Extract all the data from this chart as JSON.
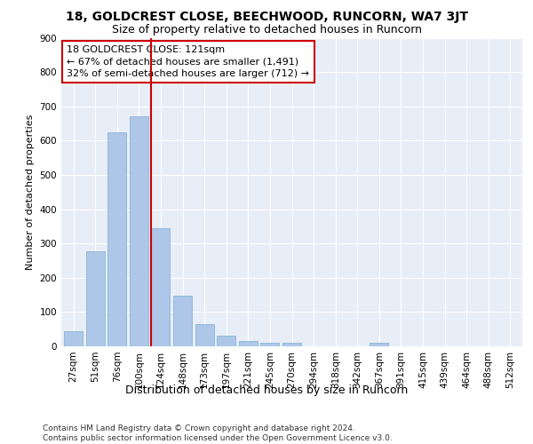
{
  "title": "18, GOLDCREST CLOSE, BEECHWOOD, RUNCORN, WA7 3JT",
  "subtitle": "Size of property relative to detached houses in Runcorn",
  "xlabel": "Distribution of detached houses by size in Runcorn",
  "ylabel": "Number of detached properties",
  "categories": [
    "27sqm",
    "51sqm",
    "76sqm",
    "100sqm",
    "124sqm",
    "148sqm",
    "173sqm",
    "197sqm",
    "221sqm",
    "245sqm",
    "270sqm",
    "294sqm",
    "318sqm",
    "342sqm",
    "367sqm",
    "391sqm",
    "415sqm",
    "439sqm",
    "464sqm",
    "488sqm",
    "512sqm"
  ],
  "values": [
    45,
    278,
    623,
    670,
    345,
    148,
    65,
    32,
    15,
    11,
    11,
    0,
    0,
    0,
    10,
    0,
    0,
    0,
    0,
    0,
    0
  ],
  "bar_color": "#aec6e8",
  "bar_edge_color": "#7aafd4",
  "highlight_line_color": "#cc0000",
  "annotation_text": "18 GOLDCREST CLOSE: 121sqm\n← 67% of detached houses are smaller (1,491)\n32% of semi-detached houses are larger (712) →",
  "annotation_box_color": "#ffffff",
  "annotation_box_edge_color": "#cc0000",
  "ylim": [
    0,
    900
  ],
  "yticks": [
    0,
    100,
    200,
    300,
    400,
    500,
    600,
    700,
    800,
    900
  ],
  "background_color": "#e8eef8",
  "footer_text": "Contains HM Land Registry data © Crown copyright and database right 2024.\nContains public sector information licensed under the Open Government Licence v3.0.",
  "title_fontsize": 10,
  "subtitle_fontsize": 9,
  "xlabel_fontsize": 9,
  "ylabel_fontsize": 8,
  "tick_fontsize": 7.5,
  "annotation_fontsize": 8,
  "footer_fontsize": 6.5
}
